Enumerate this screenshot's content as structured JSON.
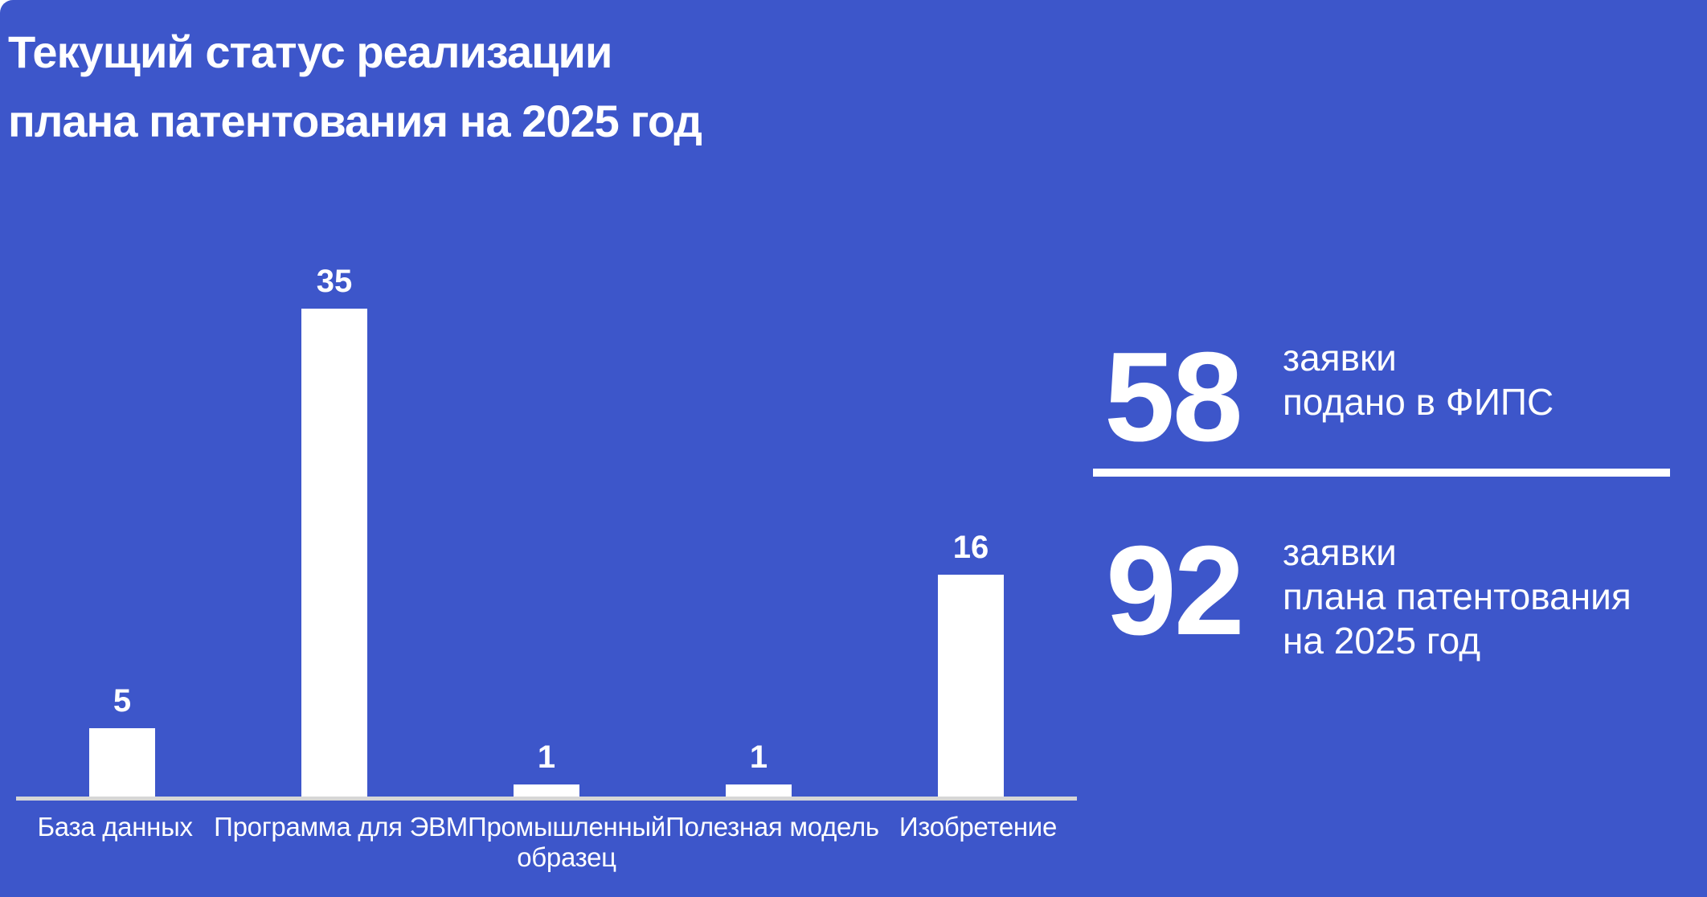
{
  "slide": {
    "background_color": "#3D56CA",
    "text_color": "#FFFFFF",
    "title_line1": "Текущий статус реализации",
    "title_line2": "плана патентования на 2025 год"
  },
  "chart_data": {
    "type": "bar",
    "title": "",
    "categories": [
      "База данных",
      "Программа для ЭВМ",
      "Промышленный образец",
      "Полезная модель",
      "Изобретение"
    ],
    "values": [
      5,
      35,
      1,
      1,
      16
    ],
    "value_labels": [
      "5",
      "35",
      "1",
      "1",
      "16"
    ],
    "bar_color": "#FFFFFF",
    "axis_line_color": "#D6D6D6",
    "xlabel": "",
    "ylabel": "",
    "ylim": [
      0,
      35
    ],
    "grid": false,
    "legend": false
  },
  "stats": [
    {
      "number": "58",
      "label_lines": [
        "заявки",
        "подано в ФИПС"
      ]
    },
    {
      "number": "92",
      "label_lines": [
        "заявки",
        "плана патентования",
        "на 2025 год"
      ]
    }
  ],
  "divider_color": "#FFFFFF"
}
